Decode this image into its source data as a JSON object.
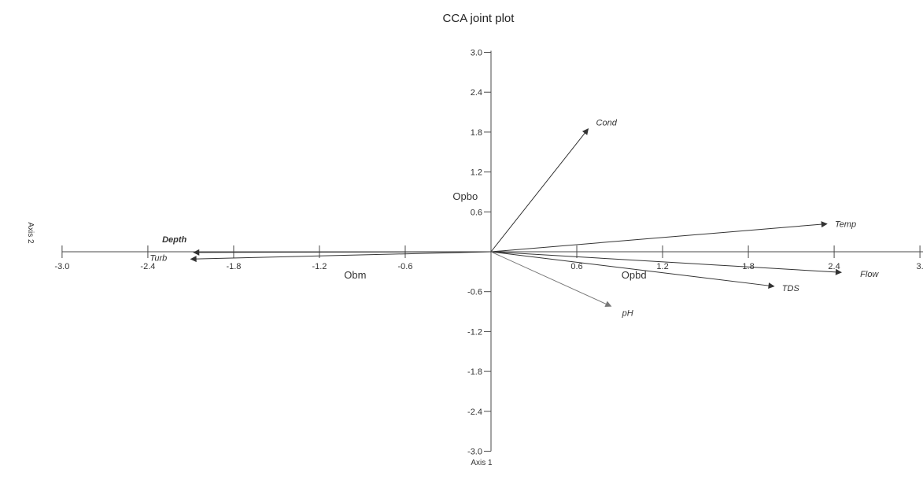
{
  "chart_data": {
    "type": "scatter",
    "title": "CCA joint plot",
    "xlabel": "Axis 1",
    "ylabel": "Axis 2",
    "xlim": [
      -3.0,
      3.0
    ],
    "ylim": [
      -3.0,
      3.0
    ],
    "x_ticks": [
      -3.0,
      -2.4,
      -1.8,
      -1.2,
      -0.6,
      0.6,
      1.2,
      1.8,
      2.4,
      3.0
    ],
    "x_tick_labels": [
      "-3.0",
      "-2.4",
      "-1.8",
      "-1.2",
      "-0.6",
      "0.6",
      "1.2",
      "1.8",
      "2.4",
      "3."
    ],
    "y_ticks": [
      3.0,
      2.4,
      1.8,
      1.2,
      0.6,
      -0.6,
      -1.2,
      -1.8,
      -2.4,
      -3.0
    ],
    "y_tick_labels": [
      "3.0",
      "2.4",
      "1.8",
      "1.2",
      "0.6",
      "-0.6",
      "-1.2",
      "-1.8",
      "-2.4",
      "-3.0"
    ],
    "vectors": [
      {
        "label": "Cond",
        "x": 0.68,
        "y": 1.85,
        "bold": false
      },
      {
        "label": "Temp",
        "x": 2.35,
        "y": 0.42,
        "bold": false
      },
      {
        "label": "Flow",
        "x": 2.45,
        "y": -0.31,
        "bold": false
      },
      {
        "label": "TDS",
        "x": 1.98,
        "y": -0.52,
        "bold": false
      },
      {
        "label": "pH",
        "x": 0.84,
        "y": -0.82,
        "bold": false
      },
      {
        "label": "Depth",
        "x": -2.08,
        "y": -0.01,
        "bold": true
      },
      {
        "label": "Turb",
        "x": -2.1,
        "y": -0.11,
        "bold": false
      }
    ],
    "species": [
      {
        "label": "Opbo",
        "x": -0.18,
        "y": 0.78
      },
      {
        "label": "Obm",
        "x": -0.95,
        "y": -0.4
      },
      {
        "label": "Opbd",
        "x": 1.0,
        "y": -0.4
      }
    ],
    "colors": {
      "axis": "#4a4a4a",
      "vector": "#333333",
      "pH_vector": "#777777"
    }
  }
}
